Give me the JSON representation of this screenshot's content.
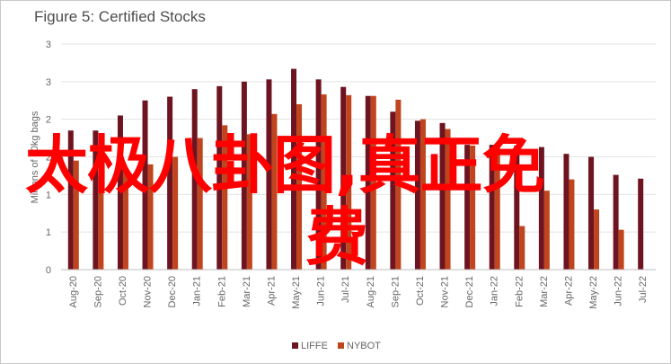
{
  "chart_data": {
    "type": "bar",
    "title": "Figure 5: Certified Stocks",
    "ylabel": "Millions of 60kg bags",
    "xlabel": "",
    "ylim": [
      0,
      3
    ],
    "yticks": [
      "0",
      "1",
      "1",
      "2",
      "2",
      "3",
      "3"
    ],
    "grid": true,
    "legend_position": "bottom",
    "categories": [
      "Aug-20",
      "Sep-20",
      "Oct-20",
      "Nov-20",
      "Dec-20",
      "Jan-21",
      "Feb-21",
      "Mar-21",
      "Apr-21",
      "May-21",
      "Jun-21",
      "Jul-21",
      "Aug-21",
      "Sep-21",
      "Oct-21",
      "Nov-21",
      "Dec-21",
      "Jan-22",
      "Feb-22",
      "Mar-22",
      "Apr-22",
      "May-22",
      "Jun-22",
      "Jul-22"
    ],
    "series": [
      {
        "name": "LIFFE",
        "color": "#6e1420",
        "values": [
          1.85,
          1.85,
          2.05,
          2.25,
          2.3,
          2.4,
          2.44,
          2.5,
          2.53,
          2.67,
          2.53,
          2.43,
          2.31,
          2.1,
          1.98,
          1.95,
          1.66,
          1.66,
          1.65,
          1.63,
          1.54,
          1.5,
          1.26,
          1.21
        ]
      },
      {
        "name": "NYBOT",
        "color": "#c0451e",
        "values": [
          1.45,
          1.25,
          1.3,
          1.4,
          1.5,
          1.75,
          1.92,
          1.8,
          2.07,
          2.2,
          2.33,
          2.32,
          2.31,
          2.26,
          2.0,
          1.87,
          1.65,
          1.63,
          0.58,
          1.05,
          1.2,
          0.8,
          0.53,
          null
        ]
      }
    ]
  },
  "overlay": {
    "line1": "太极八卦图,真正免",
    "line2": "费"
  }
}
